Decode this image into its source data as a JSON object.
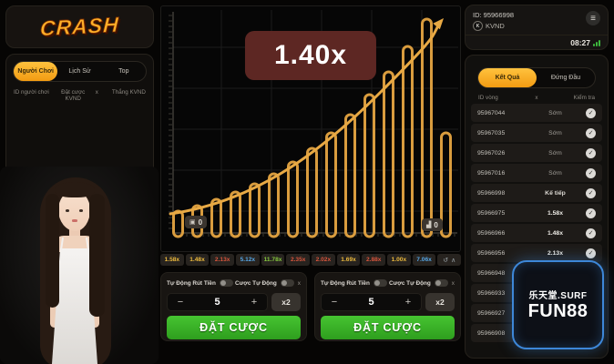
{
  "brand": {
    "logo_text": "CRASH"
  },
  "left_panel": {
    "tabs": [
      "Người Chơi",
      "Lịch Sử",
      "Top"
    ],
    "active_tab": "Người Chơi",
    "headers": [
      "ID người chơi",
      "Đặt cược KVND",
      "x",
      "Thắng KVND"
    ]
  },
  "game": {
    "current_multiplier": "1.40x",
    "players_count": "0",
    "bets_count": "0",
    "chart_bars": [
      24,
      30,
      37,
      45,
      54,
      65,
      78,
      93,
      110,
      130,
      152,
      177,
      205,
      235,
      110
    ],
    "history": [
      {
        "value": "1.58x",
        "tone": "yellow"
      },
      {
        "value": "1.48x",
        "tone": "yellow"
      },
      {
        "value": "2.13x",
        "tone": "red"
      },
      {
        "value": "5.12x",
        "tone": "blue"
      },
      {
        "value": "11.78x",
        "tone": "green"
      },
      {
        "value": "2.35x",
        "tone": "red"
      },
      {
        "value": "2.02x",
        "tone": "red"
      },
      {
        "value": "1.69x",
        "tone": "yellow"
      },
      {
        "value": "2.88x",
        "tone": "red"
      },
      {
        "value": "1.00x",
        "tone": "yellow"
      },
      {
        "value": "7.06x",
        "tone": "blue"
      }
    ]
  },
  "bet_panels": [
    {
      "auto_cashout_label": "Tự Động Rút Tiền",
      "auto_bet_label": "Cược Tự Động",
      "x_label": "x",
      "minus_label": "−",
      "amount": "5",
      "plus_label": "+",
      "double_label": "x2",
      "bet_label": "ĐẶT CƯỢC"
    },
    {
      "auto_cashout_label": "Tự Động Rút Tiền",
      "auto_bet_label": "Cược Tự Động",
      "x_label": "x",
      "minus_label": "−",
      "amount": "5",
      "plus_label": "+",
      "double_label": "x2",
      "bet_label": "ĐẶT CƯỢC"
    }
  ],
  "account": {
    "id": "ID: 95966998",
    "coin_letter": "K",
    "currency": "KVND",
    "timer": "08:27"
  },
  "results_panel": {
    "tabs": [
      "Kết Quả",
      "Đứng Đầu"
    ],
    "active_tab": "Kết Quả",
    "headers": [
      "ID vòng",
      "x",
      "Kiểm tra"
    ],
    "rows": [
      {
        "id": "95967044",
        "value": "Sớm",
        "type": "pending"
      },
      {
        "id": "95967035",
        "value": "Sớm",
        "type": "pending"
      },
      {
        "id": "95967026",
        "value": "Sớm",
        "type": "pending"
      },
      {
        "id": "95967016",
        "value": "Sớm",
        "type": "pending"
      },
      {
        "id": "95966998",
        "value": "Kế tiếp",
        "type": "next"
      },
      {
        "id": "95966975",
        "value": "1.58x",
        "type": "result"
      },
      {
        "id": "95966966",
        "value": "1.48x",
        "type": "result"
      },
      {
        "id": "95966956",
        "value": "2.13x",
        "type": "result"
      },
      {
        "id": "95966948",
        "value": "",
        "type": "hidden"
      },
      {
        "id": "95966933",
        "value": "",
        "type": "hidden"
      },
      {
        "id": "95966927",
        "value": "",
        "type": "hidden"
      },
      {
        "id": "95966908",
        "value": "",
        "type": "hidden"
      }
    ]
  },
  "watermark": {
    "line1": "乐天堂.SURF",
    "line2": "FUN88"
  },
  "icons": {
    "menu": "≡",
    "verify": "✓",
    "history": "↺",
    "collapse": "∧",
    "players_badge": "▣",
    "bets_badge": "▟"
  }
}
